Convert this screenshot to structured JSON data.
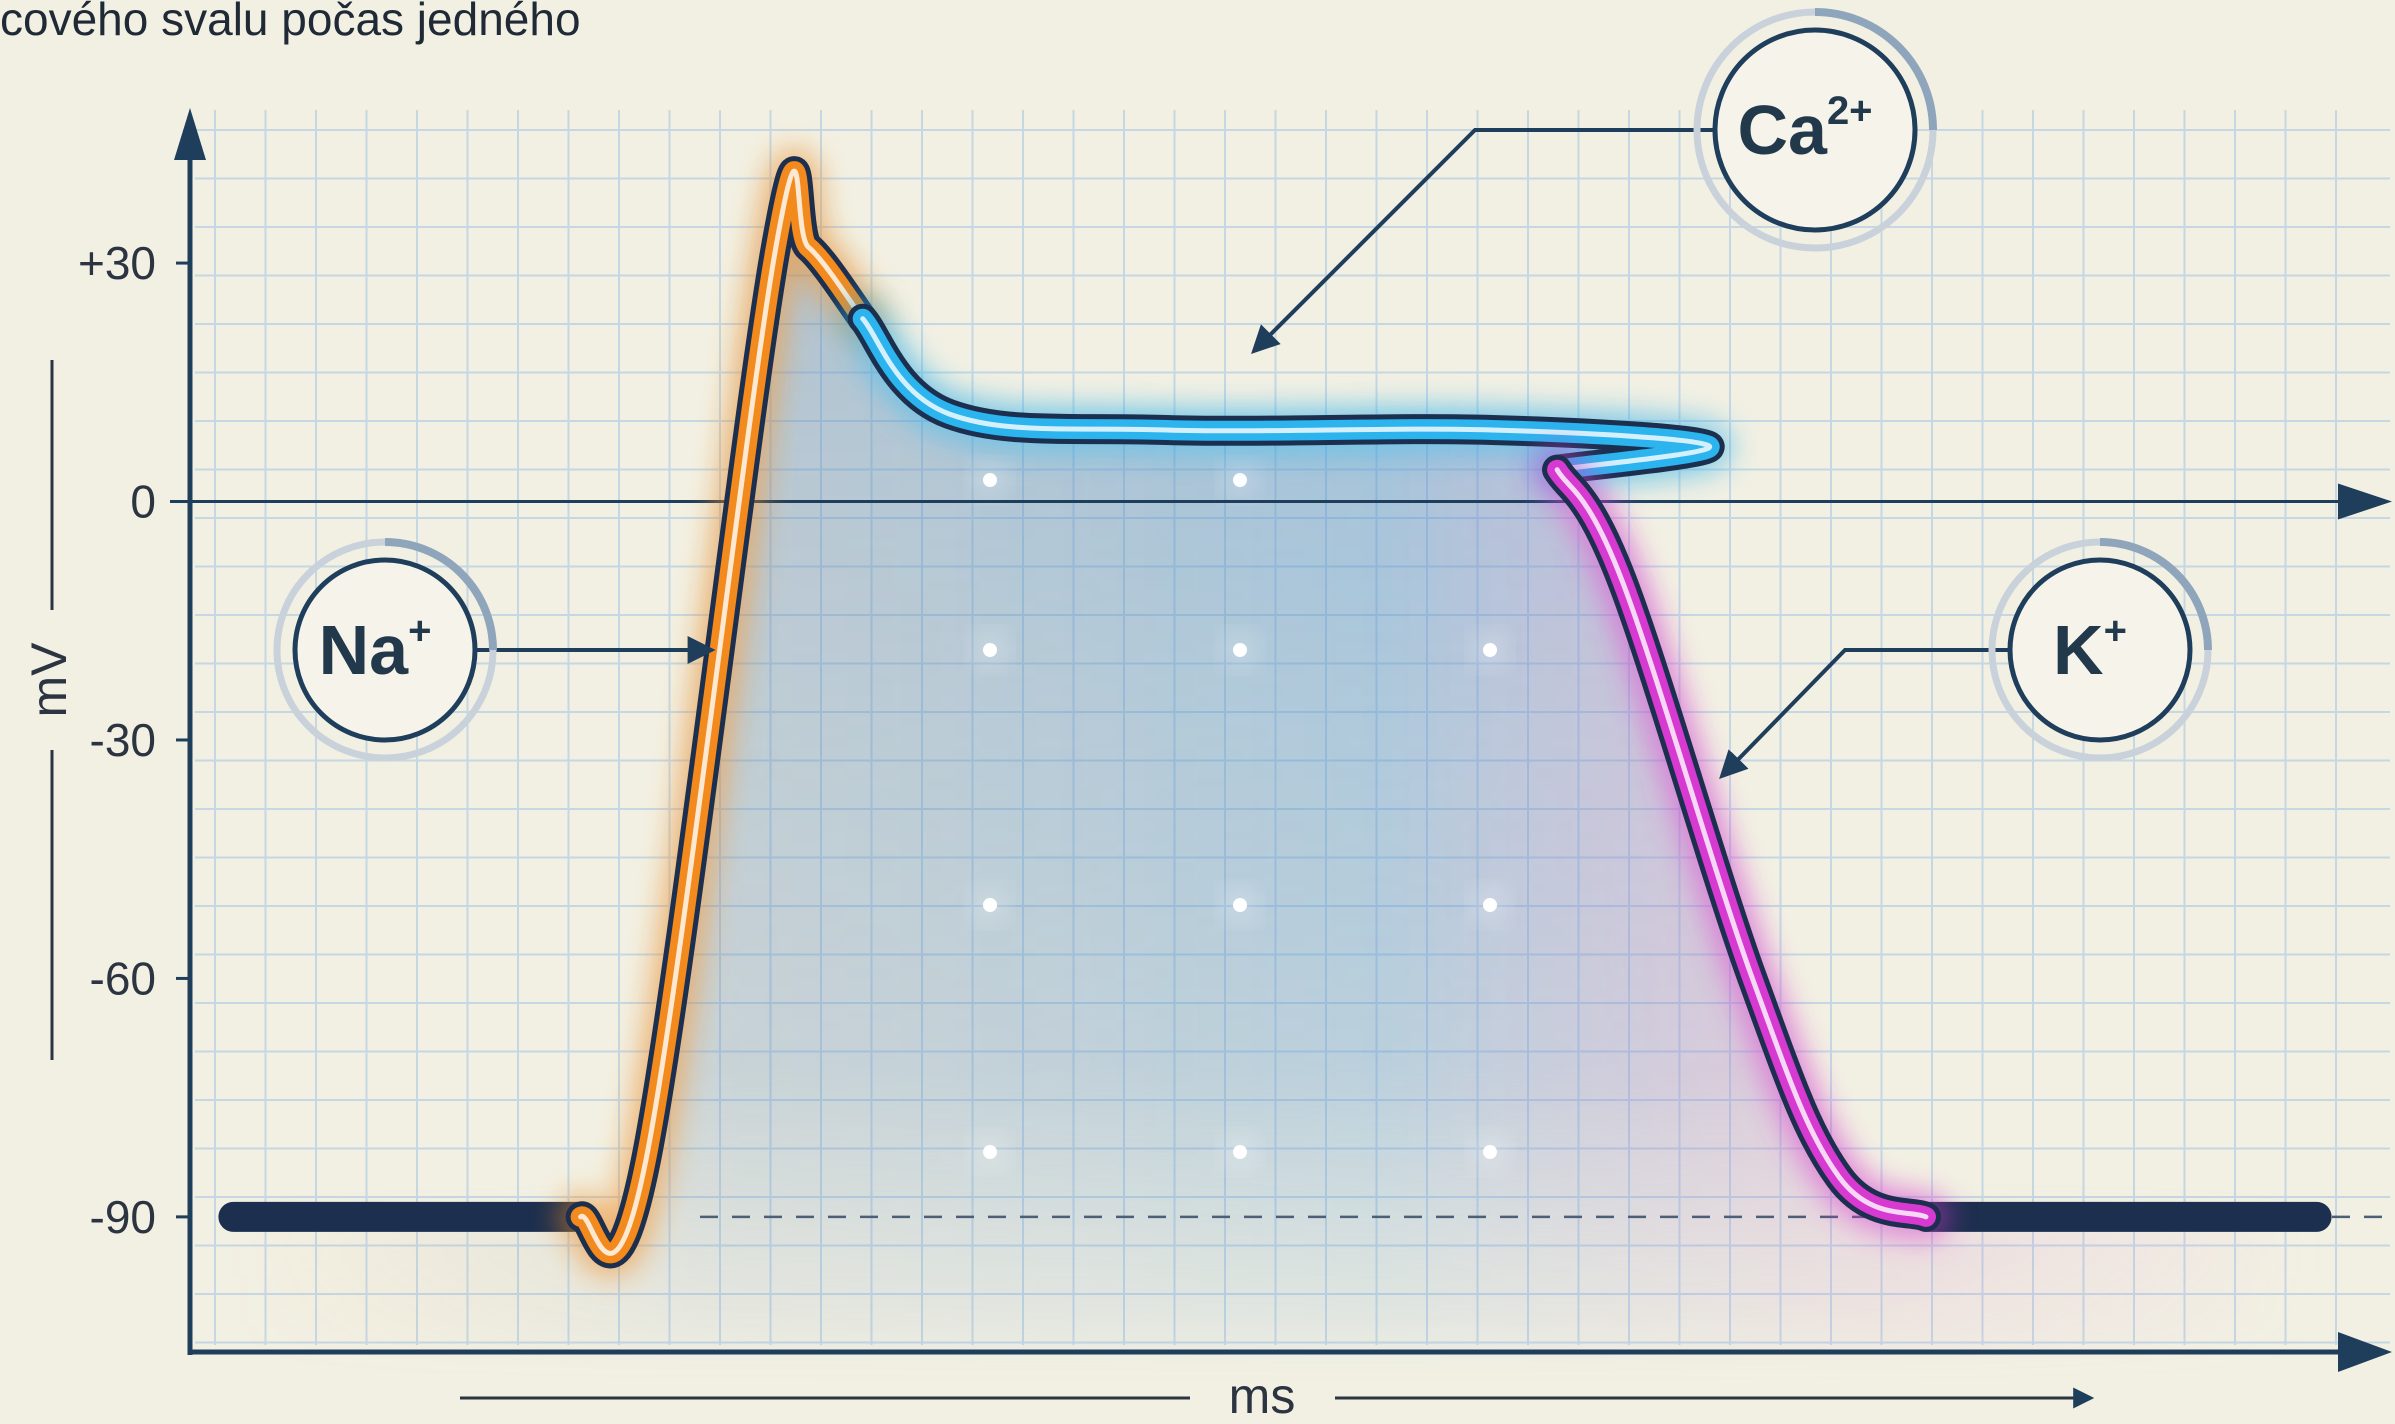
{
  "title_fragment": "cového svalu počas jedného",
  "chart_data": {
    "type": "line",
    "title": "cového svalu počas jedného",
    "xlabel": "ms",
    "ylabel": "mV",
    "yticks": [
      "+30",
      "0",
      "-30",
      "-60",
      "-90"
    ],
    "ytick_values": [
      30,
      0,
      -30,
      -60,
      -90
    ],
    "ylim": [
      -107,
      48
    ],
    "xlim": [
      0,
      100
    ],
    "resting_potential": -90,
    "grid": true,
    "series": [
      {
        "phase": "depolarization",
        "color": "#f28a1e",
        "points": [
          [
            2,
            -90
          ],
          [
            18,
            -90
          ],
          [
            21,
            -83
          ],
          [
            27,
            32
          ],
          [
            28.5,
            32
          ],
          [
            31,
            23
          ]
        ]
      },
      {
        "phase": "plateau",
        "color": "#2bb4ee",
        "points": [
          [
            31,
            23
          ],
          [
            35,
            11
          ],
          [
            45,
            9
          ],
          [
            60,
            9
          ],
          [
            70,
            7
          ],
          [
            63,
            4
          ]
        ]
      },
      {
        "phase": "repolarization",
        "color": "#d63ad0",
        "points": [
          [
            63,
            4
          ],
          [
            66,
            -10
          ],
          [
            72,
            -60
          ],
          [
            76,
            -85
          ],
          [
            80,
            -90
          ],
          [
            98,
            -90
          ]
        ]
      }
    ],
    "annotations": [
      {
        "label": "Na",
        "sup": "+",
        "target": "depolarization"
      },
      {
        "label": "Ca",
        "sup": "2+",
        "target": "plateau"
      },
      {
        "label": "K",
        "sup": "+",
        "target": "repolarization"
      }
    ],
    "colors": {
      "background": "#f2f0e3",
      "grid": "#c5d7e3",
      "axis": "#1f3e5c",
      "resting_line": "#1c2f4f",
      "na": "#f28a1e",
      "ca": "#2bb4ee",
      "k": "#d63ad0"
    }
  }
}
